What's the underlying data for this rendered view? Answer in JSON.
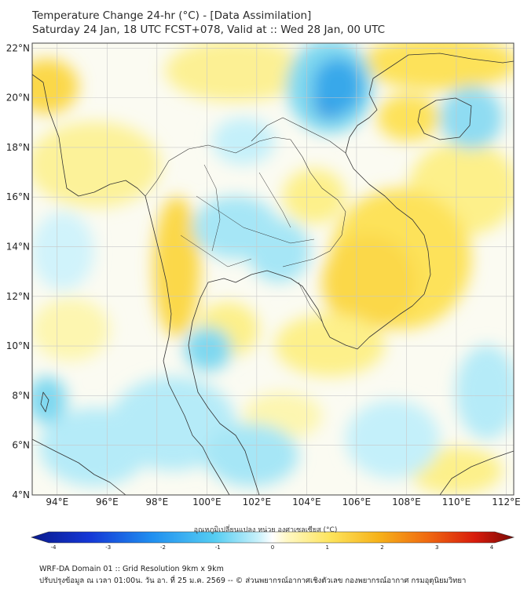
{
  "header": {
    "title_line1": "Temperature Change 24-hr (°C) - [Data Assimilation]",
    "title_line2": "Saturday 24 Jan, 18 UTC FCST+078, Valid at :: Wed 28 Jan, 00 UTC"
  },
  "map": {
    "lon_labels": [
      "94°E",
      "96°E",
      "98°E",
      "100°E",
      "102°E",
      "104°E",
      "106°E",
      "108°E",
      "110°E",
      "112°E"
    ],
    "lon_values": [
      94,
      96,
      98,
      100,
      102,
      104,
      106,
      108,
      110,
      112
    ],
    "lat_labels": [
      "4°N",
      "6°N",
      "8°N",
      "10°N",
      "12°N",
      "14°N",
      "16°N",
      "18°N",
      "20°N",
      "22°N"
    ],
    "lat_values": [
      4,
      6,
      8,
      10,
      12,
      14,
      16,
      18,
      20,
      22
    ],
    "lon_range": [
      93,
      112.3
    ],
    "lat_range": [
      4,
      22.2
    ]
  },
  "colorbar": {
    "label": "อุณหภูมิเปลี่ยนแปลง หน่วย องศาเซลเซียส (°C)",
    "tick_labels": [
      "-4",
      "-3",
      "-2",
      "-1",
      "0",
      "1",
      "2",
      "3",
      "4"
    ],
    "tick_values": [
      -4,
      -3,
      -2,
      -1,
      0,
      1,
      2,
      3,
      4
    ],
    "range": [
      -4,
      4
    ]
  },
  "footer": {
    "line1": "WRF-DA Domain 01 :: Grid Resolution 9km x 9km",
    "line2": "ปรับปรุงข้อมูล ณ เวลา 01:00น. วัน อา. ที่ 25 ม.ค. 2569 -- © ส่วนพยากรณ์อากาศเชิงตัวเลข กองพยากรณ์อากาศ กรมอุตุนิยมวิทยา"
  },
  "colors": {
    "warm": "#fde25a",
    "cool": "#6fd6ee",
    "cool_strong": "#1b6fd8",
    "land_border": "#333333",
    "grid": "#bbbbbb"
  }
}
